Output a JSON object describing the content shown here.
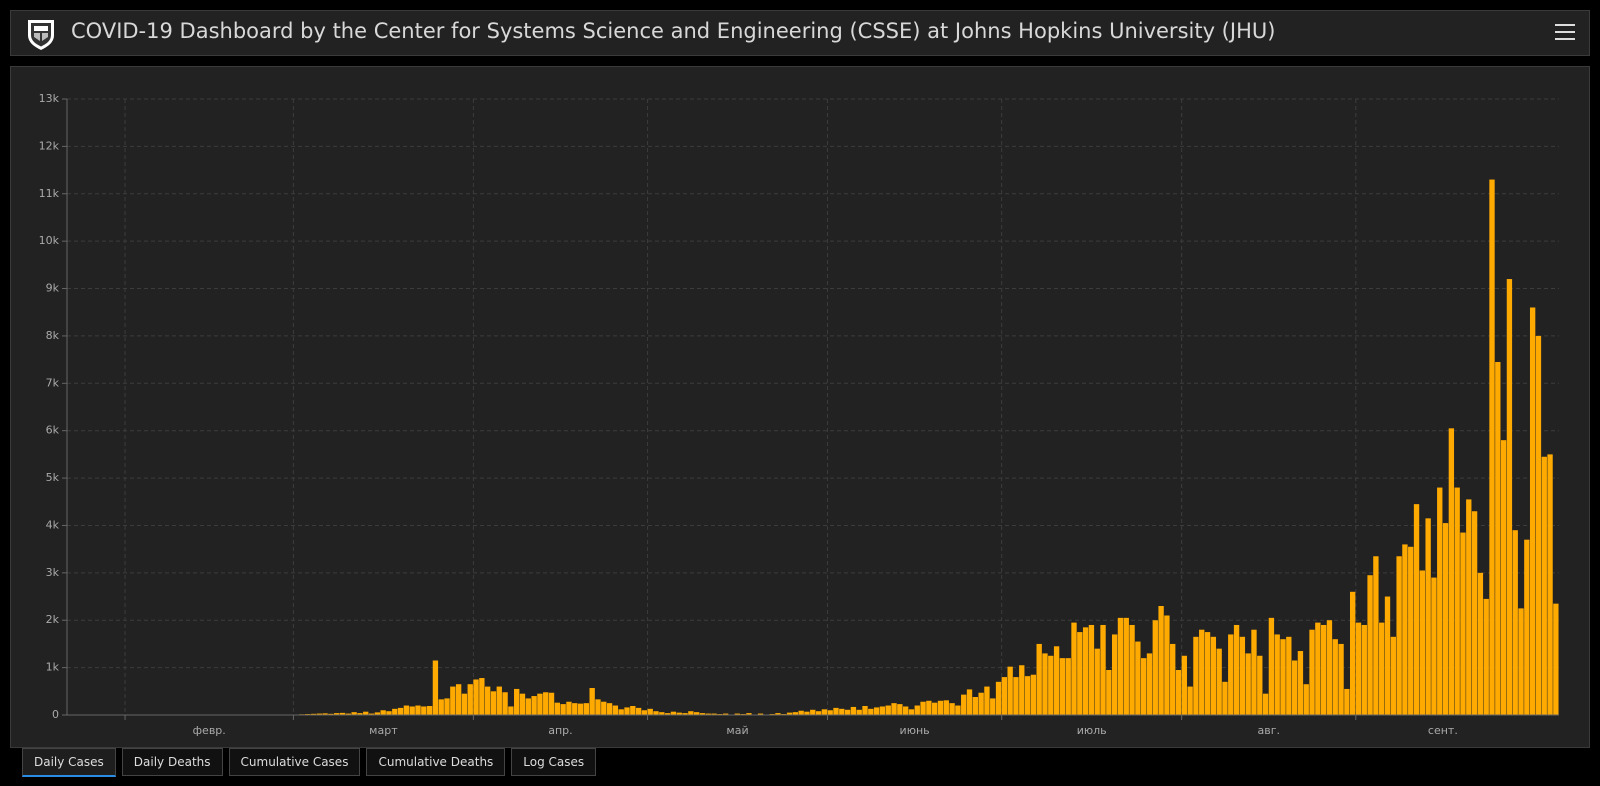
{
  "header": {
    "title": "COVID-19 Dashboard by the Center for Systems Science and Engineering (CSSE) at Johns Hopkins University (JHU)"
  },
  "tabs": [
    "Daily Cases",
    "Daily Deaths",
    "Cumulative Cases",
    "Cumulative Deaths",
    "Log Cases"
  ],
  "chart_data": {
    "type": "bar",
    "color": "#ffaa00",
    "grid": true,
    "ylim": [
      0,
      13000
    ],
    "yticks": [
      0,
      {
        "value": 1000,
        "label": "1k"
      },
      {
        "value": 2000,
        "label": "2k"
      },
      {
        "value": 3000,
        "label": "3k"
      },
      {
        "value": 4000,
        "label": "4k"
      },
      {
        "value": 5000,
        "label": "5k"
      },
      {
        "value": 6000,
        "label": "6k"
      },
      {
        "value": 7000,
        "label": "7k"
      },
      {
        "value": 8000,
        "label": "8k"
      },
      {
        "value": 9000,
        "label": "9k"
      },
      {
        "value": 10000,
        "label": "10k"
      },
      {
        "value": 11000,
        "label": "11k"
      },
      {
        "value": 12000,
        "label": "12k"
      },
      {
        "value": 13000,
        "label": "13k"
      }
    ],
    "categories": [
      null,
      null,
      null,
      null,
      null,
      null,
      null,
      null,
      null,
      null,
      "февр.",
      null,
      null,
      null,
      null,
      null,
      null,
      null,
      null,
      null,
      null,
      null,
      null,
      null,
      null,
      null,
      null,
      null,
      null,
      null,
      null,
      null,
      null,
      null,
      null,
      null,
      null,
      null,
      null,
      "март",
      null,
      null,
      null,
      null,
      null,
      null,
      null,
      null,
      null,
      null,
      null,
      null,
      null,
      null,
      null,
      null,
      null,
      null,
      null,
      null,
      null,
      null,
      null,
      null,
      null,
      null,
      null,
      null,
      null,
      null,
      "апр.",
      null,
      null,
      null,
      null,
      null,
      null,
      null,
      null,
      null,
      null,
      null,
      null,
      null,
      null,
      null,
      null,
      null,
      null,
      null,
      null,
      null,
      null,
      null,
      null,
      null,
      null,
      null,
      null,
      null,
      "май",
      null,
      null,
      null,
      null,
      null,
      null,
      null,
      null,
      null,
      null,
      null,
      null,
      null,
      null,
      null,
      null,
      null,
      null,
      null,
      null,
      null,
      null,
      null,
      null,
      null,
      null,
      null,
      null,
      null,
      null,
      "июнь",
      null,
      null,
      null,
      null,
      null,
      null,
      null,
      null,
      null,
      null,
      null,
      null,
      null,
      null,
      null,
      null,
      null,
      null,
      null,
      null,
      null,
      null,
      null,
      null,
      null,
      null,
      null,
      null,
      null,
      "июль",
      null,
      null,
      null,
      null,
      null,
      null,
      null,
      null,
      null,
      null,
      null,
      null,
      null,
      null,
      null,
      null,
      null,
      null,
      null,
      null,
      null,
      null,
      null,
      null,
      null,
      null,
      null,
      null,
      null,
      null,
      "авг.",
      null,
      null,
      null,
      null,
      null,
      null,
      null,
      null,
      null,
      null,
      null,
      null,
      null,
      null,
      null,
      null,
      null,
      null,
      null,
      null,
      null,
      null,
      null,
      null,
      null,
      null,
      null,
      null,
      null,
      "сент.",
      null,
      null,
      null,
      null,
      null,
      null,
      null,
      null,
      null,
      null,
      null,
      null,
      null,
      null,
      null,
      null,
      null,
      null,
      null,
      null,
      null,
      null,
      null,
      null,
      null,
      null,
      null,
      null,
      null,
      null,
      null,
      null,
      null,
      null
    ],
    "values": [
      0,
      0,
      1,
      0,
      2,
      0,
      1,
      2,
      0,
      1,
      1,
      0,
      2,
      1,
      0,
      0,
      1,
      2,
      0,
      0,
      1,
      0,
      0,
      1,
      0,
      2,
      1,
      3,
      2,
      0,
      1,
      5,
      3,
      2,
      6,
      4,
      8,
      5,
      10,
      10,
      15,
      20,
      25,
      30,
      35,
      25,
      40,
      45,
      30,
      60,
      40,
      70,
      30,
      55,
      100,
      80,
      130,
      150,
      200,
      180,
      200,
      180,
      190,
      1150,
      330,
      350,
      600,
      650,
      450,
      650,
      750,
      780,
      600,
      500,
      600,
      480,
      180,
      550,
      450,
      350,
      400,
      450,
      480,
      470,
      260,
      230,
      280,
      250,
      240,
      250,
      570,
      330,
      280,
      250,
      200,
      120,
      160,
      190,
      150,
      100,
      130,
      80,
      60,
      40,
      70,
      50,
      40,
      80,
      60,
      40,
      30,
      30,
      20,
      30,
      10,
      30,
      20,
      40,
      10,
      30,
      10,
      20,
      40,
      20,
      50,
      60,
      90,
      70,
      110,
      80,
      120,
      100,
      150,
      130,
      110,
      170,
      110,
      190,
      130,
      160,
      180,
      200,
      250,
      230,
      180,
      120,
      200,
      280,
      300,
      260,
      300,
      310,
      250,
      200,
      430,
      540,
      380,
      470,
      600,
      350,
      700,
      800,
      1020,
      800,
      1050,
      820,
      850,
      1500,
      1300,
      1250,
      1450,
      1200,
      1200,
      1950,
      1750,
      1850,
      1900,
      1400,
      1900,
      950,
      1700,
      2050,
      2050,
      1900,
      1550,
      1200,
      1300,
      2000,
      2300,
      2100,
      1500,
      950,
      1250,
      600,
      1650,
      1800,
      1750,
      1650,
      1400,
      700,
      1700,
      1900,
      1650,
      1300,
      1800,
      1250,
      450,
      2050,
      1700,
      1600,
      1650,
      1150,
      1350,
      650,
      1800,
      1950,
      1900,
      2000,
      1600,
      1500,
      550,
      2600,
      1950,
      1900,
      2950,
      3350,
      1950,
      2500,
      1650,
      3350,
      3600,
      3550,
      4450,
      3050,
      4150,
      2900,
      4800,
      4050,
      6050,
      4800,
      3850,
      4550,
      4300,
      3000,
      2450,
      11300,
      7450,
      5800,
      9200,
      3900,
      2250,
      3700,
      8600,
      8000,
      5450,
      5500,
      2350
    ]
  }
}
